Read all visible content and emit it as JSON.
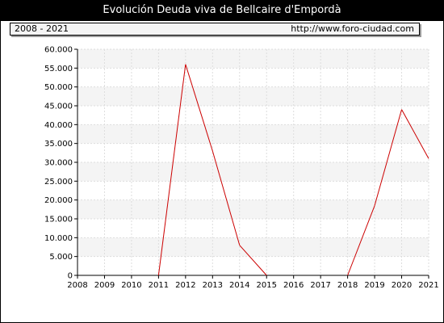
{
  "header": {
    "title": "Evolución Deuda viva de Bellcaire d'Empordà",
    "range": "2008 - 2021",
    "url": "http://www.foro-ciudad.com"
  },
  "colors": {
    "line": "#cc0000",
    "band": "#f4f4f4",
    "grid": "#dddddd"
  },
  "chart_data": {
    "type": "line",
    "title": "Evolución Deuda viva de Bellcaire d'Empordà",
    "xlabel": "",
    "ylabel": "",
    "x": [
      2008,
      2009,
      2010,
      2011,
      2012,
      2013,
      2014,
      2015,
      2016,
      2017,
      2018,
      2019,
      2020,
      2021
    ],
    "series": [
      {
        "values": [
          0,
          0,
          0,
          0,
          56000,
          33000,
          8000,
          0,
          0,
          0,
          0,
          18500,
          44000,
          31000
        ]
      }
    ],
    "ylim": [
      0,
      60000
    ],
    "yticks": [
      0,
      5000,
      10000,
      15000,
      20000,
      25000,
      30000,
      35000,
      40000,
      45000,
      50000,
      55000,
      60000
    ],
    "ytick_labels": [
      "0",
      "5.000",
      "10.000",
      "15.000",
      "20.000",
      "25.000",
      "30.000",
      "35.000",
      "40.000",
      "45.000",
      "50.000",
      "55.000",
      "60.000"
    ],
    "xtick_labels": [
      "2008",
      "2009",
      "2010",
      "2011",
      "2012",
      "2013",
      "2014",
      "2015",
      "2016",
      "2017",
      "2018",
      "2019",
      "2020",
      "2021"
    ],
    "grid": true,
    "legend": "none"
  }
}
